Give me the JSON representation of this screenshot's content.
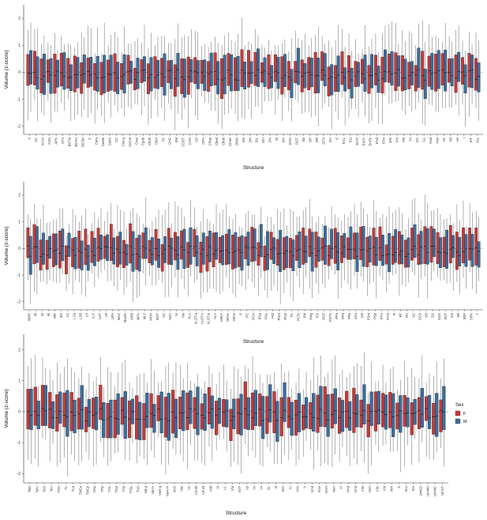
{
  "chart_data": {
    "type": "boxplot",
    "ylabel": "Volume (z-score)",
    "xlabel": "Structure",
    "ylim": [
      -2.3,
      2.5
    ],
    "yticks": [
      -2,
      -1,
      0,
      1,
      2
    ],
    "grid": false,
    "legend": {
      "title": "Sex",
      "position": "right",
      "entries": [
        {
          "key": "F",
          "color": "#C43B3B"
        },
        {
          "key": "M",
          "color": "#3B6E9E"
        }
      ]
    },
    "panels": [
      {
        "categories": [
          "A",
          "AC",
          "AcLN",
          "AON",
          "APN",
          "ATN",
          "BSTla",
          "BSTm",
          "BSTpr",
          "C",
          "Cera",
          "Cereb",
          "Cetro",
          "CC",
          "Cos-g",
          "Cos-w",
          "Coar",
          "Cgob",
          "Chob",
          "Chor",
          "CL",
          "CmF",
          "DM",
          "COST",
          "CON",
          "CP",
          "CPN",
          "CPop",
          "Cbed",
          "Cbub",
          "Cmwr",
          "DMO",
          "DG",
          "DH",
          "DIL",
          "DIV",
          "DN",
          "Dl",
          "Dm",
          "DON",
          "DOT",
          "Dp",
          "DP",
          "DR",
          "DTN",
          "DV",
          "E",
          "ECL",
          "EG",
          "EmTi",
          "EmTr",
          "EmTs",
          "ENd",
          "ENv",
          "EW",
          "Fm",
          "FR",
          "Fv",
          "GC",
          "GL",
          "Had",
          "Hav",
          "Hc",
          "Hd",
          "Hv",
          "I",
          "IAF",
          "IGL"
        ]
      },
      {
        "categories": [
          "IMRF",
          "IR",
          "IO",
          "IR",
          "IRF",
          "ISF",
          "LC",
          "LCa",
          "LFB",
          "LH",
          "LLF",
          "LOT",
          "LR",
          "LRN",
          "MAC",
          "MaON",
          "MFB",
          "MFN",
          "MLF",
          "MON",
          "MOT",
          "NC",
          "NDV",
          "NI",
          "Nin",
          "NLL",
          "nLOT-a",
          "nLOT-c",
          "nLOT-p",
          "NLV",
          "NMLF",
          "OENc",
          "OENr",
          "P",
          "PC",
          "PCN",
          "PGa",
          "PGc",
          "PGl",
          "PGm",
          "PGZ",
          "PL",
          "PLTA",
          "PM",
          "PMg",
          "PO",
          "POF",
          "POTn",
          "PPa",
          "PPd",
          "PPp",
          "PPv",
          "PR",
          "PSm",
          "PSp",
          "PTN",
          "PVO",
          "R",
          "RT",
          "RV",
          "SC",
          "SCO",
          "SD",
          "SG",
          "SGN",
          "SGT",
          "SO",
          "SR",
          "SRF",
          "SRN",
          "T"
        ]
      },
      {
        "categories": [
          "TBS",
          "TeIV",
          "TeO",
          "TeV",
          "TGN",
          "TL",
          "TLa",
          "TMCa",
          "TMCp",
          "TPM",
          "TPp",
          "TSc",
          "TSvl",
          "TTB",
          "TTBc",
          "TVS",
          "Val-g",
          "Val-m",
          "Vam-g",
          "Vam-m",
          "VAO",
          "Vas",
          "Vc",
          "Vd-dd",
          "Vd-vd",
          "Vdd",
          "Vl",
          "VL",
          "VM",
          "VOT",
          "Vp",
          "Vs",
          "Vv",
          "ZL",
          "III",
          "IIIm",
          "IV",
          "IVm",
          "V",
          "Vmd",
          "Vmv",
          "Vmm",
          "Vam",
          "VI",
          "Vmd",
          "Vmd",
          "VIIs",
          "VIIm",
          "VIIs",
          "VIII",
          "IXm",
          "X",
          "XLo",
          "Xm",
          "UmKD",
          "UmMS",
          "UmMC",
          "UmVT"
        ]
      }
    ],
    "series": [
      {
        "name": "F",
        "color": "#C43B3B"
      },
      {
        "name": "M",
        "color": "#3B6E9E"
      }
    ]
  }
}
